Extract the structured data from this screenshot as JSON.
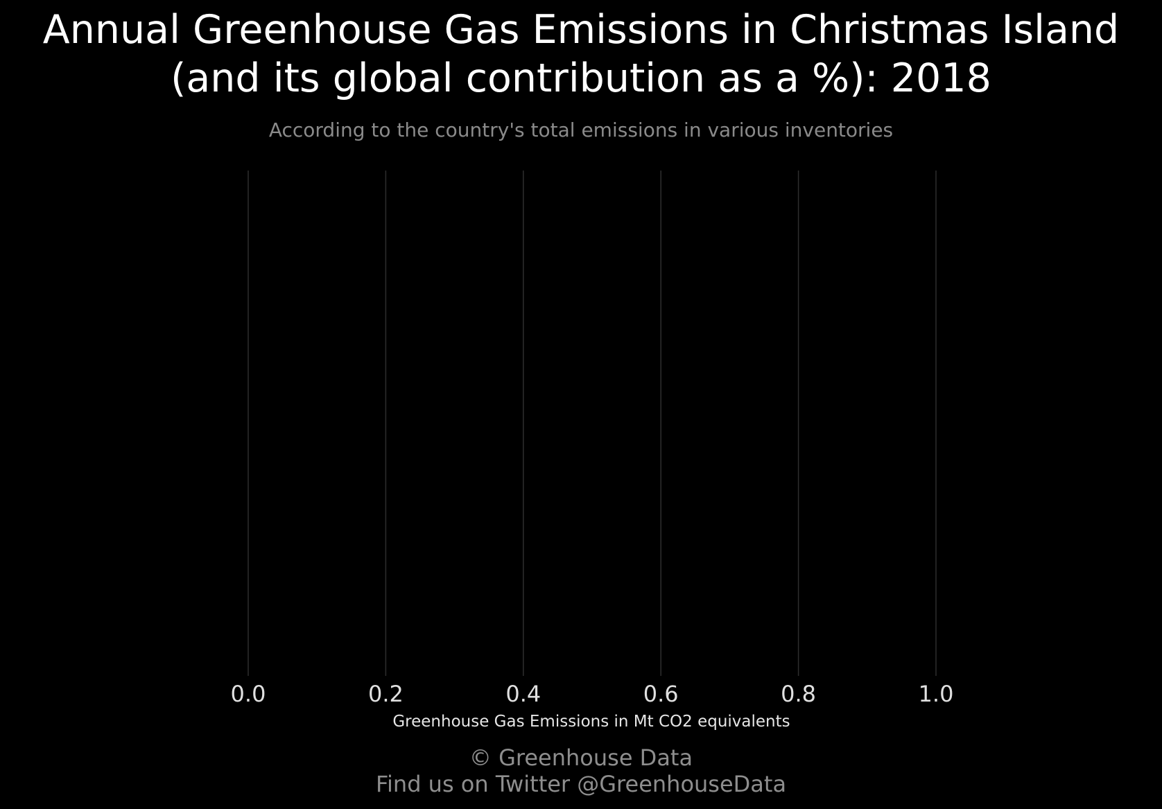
{
  "chart_data": {
    "type": "bar",
    "title_lines": [
      "Annual Greenhouse Gas Emissions in Christmas Island",
      "(and its global contribution as a %): 2018"
    ],
    "subtitle": "According to the country's total emissions in various inventories",
    "xlabel": "Greenhouse Gas Emissions in Mt CO2 equivalents",
    "ylabel": "",
    "xlim": [
      0.0,
      1.0
    ],
    "x_ticks": [
      "0.0",
      "0.2",
      "0.4",
      "0.6",
      "0.8",
      "1.0"
    ],
    "categories": [],
    "values": [],
    "grid": "vertical",
    "legend": "none"
  },
  "colors": {
    "background": "#000000",
    "title": "#ffffff",
    "subtitle": "#8a8a8a",
    "gridline": "#2e2e2e",
    "tick_label": "#e0e0e0",
    "footer": "#8e8e8e"
  },
  "footer": {
    "copyright": "© Greenhouse Data",
    "twitter": "Find us on Twitter @GreenhouseData"
  }
}
